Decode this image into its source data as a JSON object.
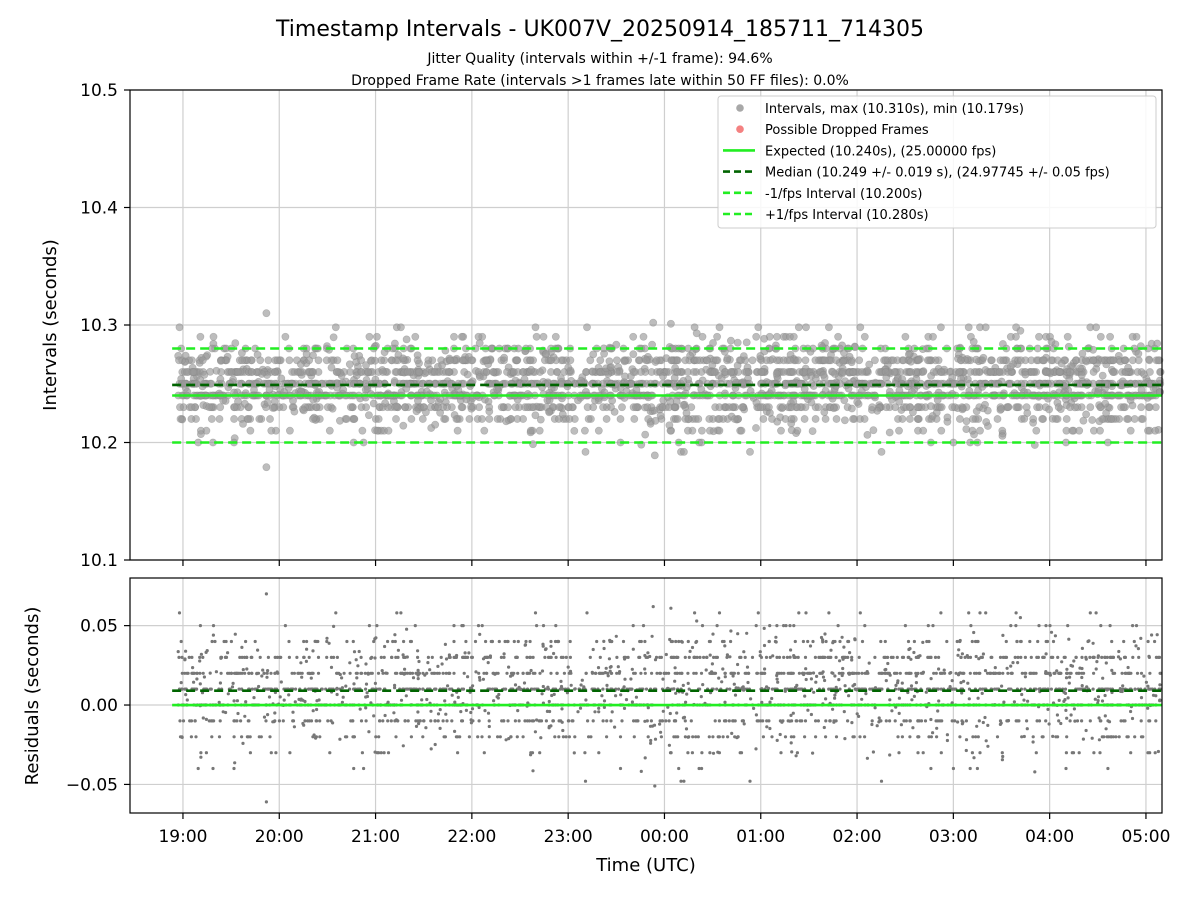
{
  "chart_data": [
    {
      "type": "scatter",
      "panel": "intervals",
      "title": "Timestamp Intervals - UK007V_20250914_185711_714305",
      "subtitle_1": "Jitter Quality (intervals within +/-1 frame): 94.6%",
      "subtitle_2": "Dropped Frame Rate (intervals >1 frames late within 50 FF files): 0.0%",
      "ylabel": "Intervals (seconds)",
      "ylim": [
        10.1,
        10.5
      ],
      "y_ticks": [
        "10.1",
        "10.2",
        "10.3",
        "10.4",
        "10.5"
      ],
      "x_range": [
        "18:27",
        "05:10"
      ],
      "x_ticks": [
        "19:00",
        "20:00",
        "21:00",
        "22:00",
        "23:00",
        "00:00",
        "01:00",
        "02:00",
        "03:00",
        "04:00",
        "05:00"
      ],
      "grid": true,
      "legend_placement": "top-right",
      "legend": [
        {
          "label": "Intervals, max (10.310s), min (10.179s)",
          "marker": "dot",
          "color": "#999999"
        },
        {
          "label": "Possible Dropped Frames",
          "marker": "dot",
          "color": "#f26b6b"
        },
        {
          "label": "Expected (10.240s), (25.00000 fps)",
          "marker": "solid",
          "color": "#22ee22"
        },
        {
          "label": "Median (10.249 +/- 0.019 s), (24.97745 +/- 0.05 fps)",
          "marker": "dashed",
          "color": "#006400"
        },
        {
          "label": "-1/fps Interval (10.200s)",
          "marker": "dashed",
          "color": "#22ee22"
        },
        {
          "label": "+1/fps Interval (10.280s)",
          "marker": "dashed",
          "color": "#22ee22"
        }
      ],
      "series": [
        {
          "name": "Intervals, max (10.310s), min (10.179s)",
          "time_range": [
            "18:57",
            "05:10"
          ],
          "y_center": 10.25,
          "y_min": 10.179,
          "y_max": 10.31,
          "color": "#999999",
          "notable_points": [
            {
              "x": "19:52",
              "y": 10.31
            },
            {
              "x": "19:52",
              "y": 10.179
            },
            {
              "x": "23:53",
              "y": 10.302
            },
            {
              "x": "00:04",
              "y": 10.301
            },
            {
              "x": "23:54",
              "y": 10.189
            }
          ]
        },
        {
          "name": "Expected (10.240s), (25.00000 fps)",
          "y": 10.24,
          "color": "#22ee22"
        },
        {
          "name": "Median (10.249 +/- 0.019 s), (24.97745 +/- 0.05 fps)",
          "y": 10.249,
          "color": "#006400"
        },
        {
          "name": "-1/fps Interval (10.200s)",
          "y": 10.2,
          "color": "#22ee22"
        },
        {
          "name": "+1/fps Interval (10.280s)",
          "y": 10.28,
          "color": "#22ee22"
        }
      ]
    },
    {
      "type": "scatter",
      "panel": "residuals",
      "xlabel": "Time (UTC)",
      "ylabel": "Residuals (seconds)",
      "ylim": [
        -0.068,
        0.08
      ],
      "y_ticks": [
        "−0.05",
        "0.00",
        "0.05"
      ],
      "y_tick_values": [
        -0.05,
        0.0,
        0.05
      ],
      "x_range": [
        "18:27",
        "05:10"
      ],
      "x_ticks": [
        "19:00",
        "20:00",
        "21:00",
        "22:00",
        "23:00",
        "00:00",
        "01:00",
        "02:00",
        "03:00",
        "04:00",
        "05:00"
      ],
      "grid": true,
      "series": [
        {
          "name": "Residuals",
          "time_range": [
            "18:57",
            "05:10"
          ],
          "y_center": 0.01,
          "y_min": -0.061,
          "y_max": 0.07,
          "color": "#777777"
        },
        {
          "name": "Expected",
          "y": 0.0,
          "color": "#22ee22"
        },
        {
          "name": "Median",
          "y": 0.009,
          "color": "#006400"
        }
      ]
    }
  ]
}
